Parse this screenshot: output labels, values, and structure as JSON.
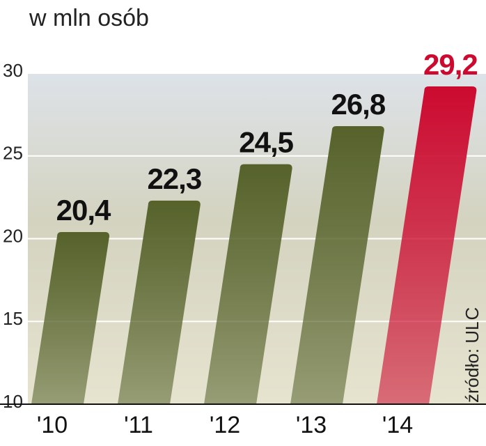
{
  "chart_data": {
    "type": "bar",
    "subtitle": "w mln osób",
    "source": "źródło: ULC",
    "categories": [
      "'10",
      "'11",
      "'12",
      "'13",
      "'14"
    ],
    "values": [
      20.4,
      22.3,
      24.5,
      26.8,
      29.2
    ],
    "value_labels": [
      "20,4",
      "22,3",
      "24,5",
      "26,8",
      "29,2"
    ],
    "colors": [
      "#56622a",
      "#56622a",
      "#56622a",
      "#56622a",
      "#cc0a2f"
    ],
    "ylim": [
      10,
      30
    ],
    "yticks": [
      10,
      15,
      20,
      25,
      30
    ],
    "grid": true
  }
}
